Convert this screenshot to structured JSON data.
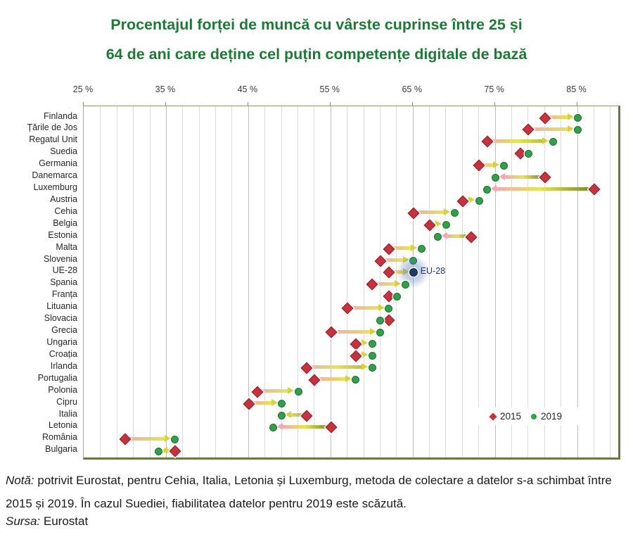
{
  "title": {
    "line1": "Procentajul forței de muncă cu vârste cuprinse între 25 și",
    "line2": "64 de ani care deține cel puțin competențe digitale de bază"
  },
  "legend": {
    "items": [
      {
        "label": "2015",
        "marker": "diamond",
        "color": "#c5333e"
      },
      {
        "label": "2019",
        "marker": "circle",
        "color": "#31a04a"
      }
    ]
  },
  "annotation": {
    "label": "EU-28",
    "dot_color": "#203864",
    "glow_color": "#5476be"
  },
  "note": {
    "label": "Notă:",
    "line1": "potrivit Eurostat, pentru Cehia, Italia, Letonia și Luxemburg, metoda de colectare a datelor s-a",
    "line2": "schimbat între 2015 și 2019. În cazul Suediei, fiabilitatea datelor pentru 2019 este scăzută."
  },
  "source": {
    "label": "Sursa:",
    "text": "Eurostat"
  },
  "colors": {
    "title_green": "#1d7a36",
    "red_2015": "#c5333e",
    "green_2019": "#31a04a",
    "navy_eu": "#203864",
    "arrow_pink": "#f2a9b6",
    "arrow_yellow": "#e9e44e",
    "arrow_olive": "#76842e"
  },
  "chart_data": {
    "type": "scatter",
    "subtype": "dumbbell-arrow",
    "x_axis": {
      "tick_labels": [
        "25 %",
        "35 %",
        "45 %",
        "55 %",
        "65 %",
        "75 %",
        "85 %"
      ],
      "tick_values": [
        25,
        35,
        45,
        55,
        65,
        75,
        85
      ],
      "min": 25,
      "max": 90,
      "minor_gridline_step": 2,
      "position": "top"
    },
    "categories": [
      "Finlanda",
      "Țările de Jos",
      "Regatul Unit",
      "Suedia",
      "Germania",
      "Danemarca",
      "Luxemburg",
      "Austria",
      "Cehia",
      "Belgia",
      "Estonia",
      "Malta",
      "Slovenia",
      "UE-28",
      "Spania",
      "Franța",
      "Lituania",
      "Slovacia",
      "Grecia",
      "Ungaria",
      "Croația",
      "Irlanda",
      "Portugalia",
      "Polonia",
      "Cipru",
      "Italia",
      "Letonia",
      "România",
      "Bulgaria"
    ],
    "series": [
      {
        "name": "2015",
        "marker": "diamond",
        "color": "#c5333e",
        "values": [
          81,
          79,
          74,
          78,
          73,
          81,
          87,
          71,
          65,
          67,
          72,
          62,
          61,
          62,
          60,
          62,
          57,
          62,
          55,
          58,
          58,
          52,
          53,
          46,
          45,
          52,
          55,
          30,
          36
        ]
      },
      {
        "name": "2019",
        "marker": "circle",
        "color": "#31a04a",
        "values": [
          85,
          85,
          82,
          79,
          76,
          75,
          74,
          73,
          70,
          69,
          68,
          66,
          65,
          65,
          64,
          63,
          62,
          61,
          61,
          60,
          60,
          60,
          58,
          51,
          49,
          49,
          48,
          36,
          34
        ]
      }
    ],
    "highlight_category": "UE-28",
    "legend_position": "inside-bottom-right",
    "grid": true
  }
}
